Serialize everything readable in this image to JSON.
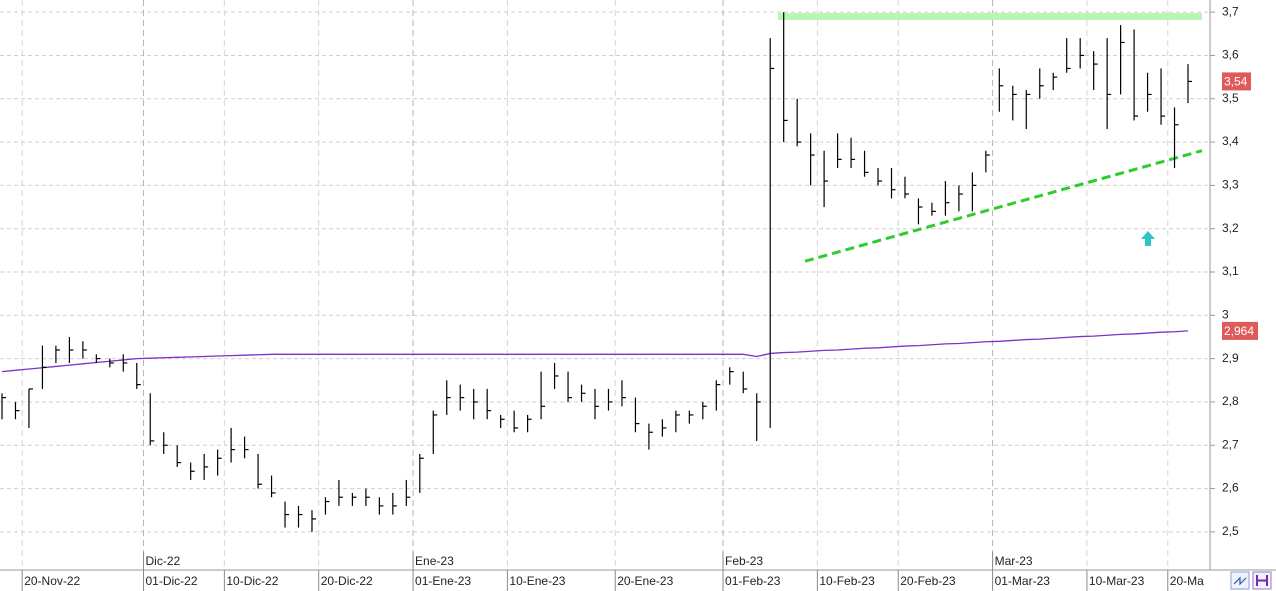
{
  "chart_data": {
    "type": "ohlc",
    "categories": [
      null,
      "20-Nov-22",
      null,
      null,
      null,
      null,
      null,
      null,
      null,
      null,
      "01-Dic-22",
      null,
      null,
      null,
      null,
      null,
      "10-Dic-22",
      null,
      null,
      null,
      null,
      null,
      null,
      "20-Dic-22",
      null,
      null,
      null,
      null,
      null,
      null,
      "01-Ene-23",
      null,
      null,
      null,
      null,
      null,
      null,
      "10-Ene-23",
      null,
      null,
      null,
      null,
      null,
      null,
      null,
      "20-Ene-23",
      null,
      null,
      null,
      null,
      null,
      null,
      null,
      "01-Feb-23",
      null,
      null,
      null,
      null,
      null,
      null,
      "10-Feb-23",
      null,
      null,
      null,
      null,
      null,
      "20-Feb-23",
      null,
      null,
      null,
      null,
      null,
      null,
      "01-Mar-23",
      null,
      null,
      null,
      null,
      null,
      null,
      "10-Mar-23",
      null,
      null,
      null,
      null,
      null,
      "20-Ma",
      null,
      null
    ],
    "month_categories": [
      null,
      null,
      null,
      null,
      null,
      null,
      null,
      null,
      null,
      null,
      "Dic-22",
      null,
      null,
      null,
      null,
      null,
      null,
      null,
      null,
      null,
      null,
      null,
      null,
      null,
      null,
      null,
      null,
      null,
      null,
      null,
      "Ene-23",
      null,
      null,
      null,
      null,
      null,
      null,
      null,
      null,
      null,
      null,
      null,
      null,
      null,
      null,
      null,
      null,
      null,
      null,
      null,
      null,
      null,
      null,
      "Feb-23",
      null,
      null,
      null,
      null,
      null,
      null,
      null,
      null,
      null,
      null,
      null,
      null,
      null,
      null,
      null,
      null,
      null,
      null,
      null,
      "Mar-23",
      null,
      null,
      null,
      null,
      null,
      null,
      null,
      null,
      null,
      null,
      null,
      null,
      null,
      null,
      null
    ],
    "high": [
      2.82,
      2.8,
      2.83,
      2.93,
      2.93,
      2.95,
      2.94,
      2.91,
      2.9,
      2.91,
      2.89,
      2.82,
      2.73,
      2.7,
      2.66,
      2.68,
      2.69,
      2.74,
      2.72,
      2.68,
      2.63,
      2.57,
      2.56,
      2.55,
      2.58,
      2.62,
      2.59,
      2.6,
      2.58,
      2.59,
      2.62,
      2.68,
      2.78,
      2.85,
      2.84,
      2.83,
      2.83,
      2.77,
      2.78,
      2.77,
      2.87,
      2.89,
      2.87,
      2.84,
      2.83,
      2.83,
      2.85,
      2.81,
      2.75,
      2.76,
      2.78,
      2.78,
      2.8,
      2.85,
      2.88,
      2.87,
      2.82,
      3.64,
      3.7,
      3.5,
      3.42,
      3.38,
      3.42,
      3.41,
      3.38,
      3.34,
      3.34,
      3.32,
      3.27,
      3.26,
      3.31,
      3.3,
      3.33,
      3.38,
      3.57,
      3.53,
      3.52,
      3.57,
      3.56,
      3.64,
      3.64,
      3.61,
      3.64,
      3.67,
      3.66,
      3.56,
      3.57,
      3.48,
      3.58
    ],
    "low": [
      2.76,
      2.76,
      2.74,
      2.83,
      2.89,
      2.89,
      2.9,
      2.89,
      2.88,
      2.87,
      2.83,
      2.7,
      2.68,
      2.65,
      2.62,
      2.62,
      2.63,
      2.66,
      2.67,
      2.6,
      2.58,
      2.51,
      2.51,
      2.5,
      2.54,
      2.56,
      2.56,
      2.56,
      2.54,
      2.54,
      2.56,
      2.59,
      2.68,
      2.77,
      2.78,
      2.76,
      2.76,
      2.74,
      2.73,
      2.73,
      2.76,
      2.83,
      2.8,
      2.8,
      2.76,
      2.78,
      2.79,
      2.73,
      2.69,
      2.72,
      2.73,
      2.75,
      2.76,
      2.78,
      2.84,
      2.82,
      2.71,
      2.74,
      3.4,
      3.39,
      3.3,
      3.25,
      3.34,
      3.34,
      3.32,
      3.3,
      3.27,
      3.27,
      3.21,
      3.23,
      3.23,
      3.24,
      3.24,
      3.33,
      3.47,
      3.45,
      3.43,
      3.5,
      3.52,
      3.56,
      3.57,
      3.52,
      3.43,
      3.51,
      3.45,
      3.47,
      3.44,
      3.34,
      3.49
    ],
    "close": [
      2.81,
      2.78,
      2.83,
      2.88,
      2.92,
      2.92,
      2.92,
      2.9,
      2.89,
      2.89,
      2.84,
      2.71,
      2.7,
      2.66,
      2.64,
      2.65,
      2.67,
      2.69,
      2.69,
      2.61,
      2.59,
      2.54,
      2.54,
      2.53,
      2.57,
      2.58,
      2.58,
      2.58,
      2.56,
      2.56,
      2.58,
      2.67,
      2.77,
      2.81,
      2.81,
      2.8,
      2.78,
      2.76,
      2.74,
      2.76,
      2.79,
      2.86,
      2.81,
      2.82,
      2.79,
      2.8,
      2.81,
      2.75,
      2.73,
      2.74,
      2.77,
      2.77,
      2.79,
      2.84,
      2.87,
      2.83,
      2.8,
      3.57,
      3.45,
      3.4,
      3.37,
      3.31,
      3.36,
      3.36,
      3.33,
      3.31,
      3.29,
      3.28,
      3.25,
      3.24,
      3.26,
      3.28,
      3.3,
      3.37,
      3.53,
      3.51,
      3.51,
      3.53,
      3.55,
      3.57,
      3.6,
      3.58,
      3.51,
      3.63,
      3.46,
      3.51,
      3.46,
      3.44,
      3.54
    ],
    "bar_color": "#000000",
    "moving_average": {
      "color": "#7e30c8",
      "values": [
        2.87,
        2.873,
        2.876,
        2.879,
        2.882,
        2.885,
        2.888,
        2.891,
        2.894,
        2.897,
        2.9,
        2.901,
        2.902,
        2.903,
        2.904,
        2.905,
        2.906,
        2.907,
        2.908,
        2.909,
        2.91,
        2.91,
        2.91,
        2.91,
        2.91,
        2.91,
        2.91,
        2.91,
        2.91,
        2.91,
        2.91,
        2.91,
        2.91,
        2.91,
        2.91,
        2.91,
        2.91,
        2.91,
        2.91,
        2.91,
        2.91,
        2.91,
        2.91,
        2.91,
        2.91,
        2.91,
        2.91,
        2.91,
        2.91,
        2.91,
        2.91,
        2.91,
        2.91,
        2.91,
        2.91,
        2.91,
        2.905,
        2.912,
        2.914,
        2.915,
        2.917,
        2.919,
        2.92,
        2.922,
        2.924,
        2.925,
        2.927,
        2.929,
        2.93,
        2.932,
        2.934,
        2.935,
        2.937,
        2.939,
        2.94,
        2.942,
        2.944,
        2.945,
        2.947,
        2.949,
        2.951,
        2.952,
        2.954,
        2.956,
        2.957,
        2.959,
        2.961,
        2.962,
        2.964
      ]
    },
    "last_price_label": {
      "value": 3.54,
      "label": "3,54"
    },
    "moving_average_label": {
      "value": 2.964,
      "label": "2,964"
    },
    "badge_color": "#e05a5a",
    "resistance": {
      "value": 3.69,
      "color": "#b9f5b4"
    },
    "trendline": {
      "from": 3.125,
      "to": 3.38,
      "color": "#2ecc2e"
    },
    "ylim": [
      2.412,
      3.728
    ],
    "yticks": [
      {
        "value": 2.5,
        "label": "2,5"
      },
      {
        "value": 2.6,
        "label": "2,6"
      },
      {
        "value": 2.7,
        "label": "2,7"
      },
      {
        "value": 2.8,
        "label": "2,8"
      },
      {
        "value": 2.9,
        "label": "2,9"
      },
      3,
      {
        "value": 3.1,
        "label": "3,1"
      },
      {
        "value": 3.2,
        "label": "3,2"
      },
      {
        "value": 3.3,
        "label": "3,3"
      },
      {
        "value": 3.4,
        "label": "3,4"
      },
      {
        "value": 3.5,
        "label": "3,5"
      },
      {
        "value": 3.6,
        "label": "3,6"
      },
      {
        "value": 3.7,
        "label": "3,7"
      }
    ],
    "grid": true
  }
}
